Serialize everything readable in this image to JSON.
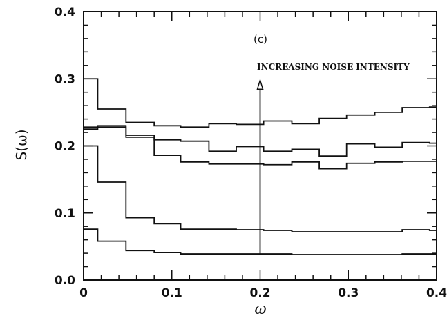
{
  "chart_data": {
    "type": "line",
    "step": true,
    "title": "",
    "xlabel": "ω",
    "ylabel": "S(ω)",
    "xlim": [
      0,
      0.4
    ],
    "ylim": [
      0,
      0.4
    ],
    "xticks": [
      0,
      0.1,
      0.2,
      0.3,
      0.4
    ],
    "yticks": [
      0.0,
      0.1,
      0.2,
      0.3,
      0.4
    ],
    "xtick_labels": [
      "0",
      "0.1",
      "0.2",
      "0.3",
      "0.4"
    ],
    "ytick_labels": [
      "0.0",
      "0.1",
      "0.2",
      "0.3",
      "0.4"
    ],
    "grid": false,
    "bin_edges": [
      0,
      0.016,
      0.048,
      0.08,
      0.11,
      0.142,
      0.173,
      0.204,
      0.236,
      0.267,
      0.298,
      0.33,
      0.361,
      0.392,
      0.4
    ],
    "series": [
      {
        "values": [
          0.3,
          0.255,
          0.235,
          0.23,
          0.228,
          0.233,
          0.232,
          0.237,
          0.233,
          0.241,
          0.246,
          0.25,
          0.257,
          0.258
        ]
      },
      {
        "values": [
          0.228,
          0.228,
          0.213,
          0.209,
          0.207,
          0.192,
          0.199,
          0.192,
          0.195,
          0.185,
          0.203,
          0.198,
          0.205,
          0.204
        ]
      },
      {
        "values": [
          0.225,
          0.23,
          0.216,
          0.186,
          0.176,
          0.173,
          0.173,
          0.172,
          0.176,
          0.166,
          0.174,
          0.176,
          0.177,
          0.177
        ]
      },
      {
        "values": [
          0.2,
          0.146,
          0.093,
          0.084,
          0.076,
          0.076,
          0.075,
          0.074,
          0.072,
          0.072,
          0.072,
          0.072,
          0.075,
          0.074
        ]
      },
      {
        "values": [
          0.076,
          0.058,
          0.044,
          0.041,
          0.039,
          0.039,
          0.039,
          0.039,
          0.038,
          0.038,
          0.038,
          0.038,
          0.039,
          0.039
        ]
      }
    ],
    "annotations": {
      "panel_label": "(c)",
      "arrow_text": "INCREASING NOISE INTENSITY",
      "arrow_x": 0.2,
      "arrow_y_start": 0.038,
      "arrow_y_end": 0.298
    }
  }
}
